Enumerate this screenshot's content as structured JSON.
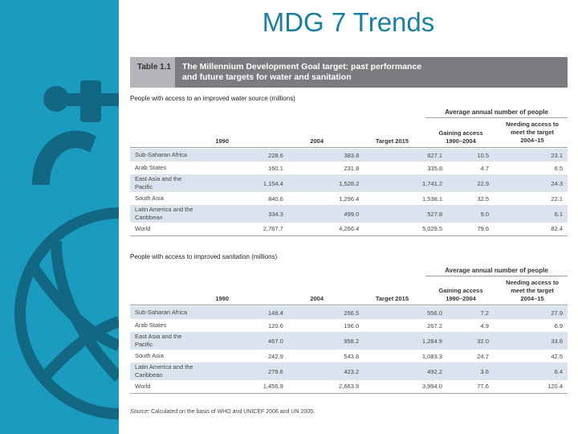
{
  "slide": {
    "title": "MDG 7 Trends"
  },
  "table": {
    "label": "Table 1.1",
    "caption_line1": "The Millennium Development Goal target: past performance",
    "caption_line2": "and future targets for water and sanitation"
  },
  "water": {
    "title": "People with access to an improved water source (millions)",
    "group_header": "Average annual number of people",
    "sub1": [
      "Gaining access",
      "1990–2004"
    ],
    "sub2": [
      "Needing access to",
      "meet the target",
      "2004–15"
    ],
    "columns": [
      "1990",
      "2004",
      "Target 2015"
    ],
    "rows": [
      {
        "region": [
          "Sub-Saharan Africa"
        ],
        "v": [
          "228.6",
          "383.8",
          "627.1",
          "10.5",
          "23.1"
        ]
      },
      {
        "region": [
          "Arab States"
        ],
        "v": [
          "160.1",
          "231.8",
          "335.8",
          "4.7",
          "6.5"
        ]
      },
      {
        "region": [
          "East Asia and the",
          "Pacific"
        ],
        "v": [
          "1,154.4",
          "1,528.2",
          "1,741.2",
          "22.9",
          "24.3"
        ]
      },
      {
        "region": [
          "South Asia"
        ],
        "v": [
          "840.6",
          "1,296.4",
          "1,538.1",
          "32.5",
          "22.1"
        ]
      },
      {
        "region": [
          "Latin America and the",
          "Caribbean"
        ],
        "v": [
          "334.3",
          "499.0",
          "527.8",
          "9.0",
          "6.1"
        ]
      },
      {
        "region": [
          "World"
        ],
        "v": [
          "2,767.7",
          "4,266.4",
          "5,029.5",
          "79.6",
          "82.4"
        ]
      }
    ]
  },
  "sanitation": {
    "title": "People with access to improved sanitation (millions)",
    "group_header": "Average annual number of people",
    "sub1": [
      "Gaining access",
      "1990–2004"
    ],
    "sub2": [
      "Needing access to",
      "meet the target",
      "2004–15"
    ],
    "columns": [
      "1990",
      "2004",
      "Target 2015"
    ],
    "rows": [
      {
        "region": [
          "Sub-Saharan Africa"
        ],
        "v": [
          "148.4",
          "256.5",
          "556.0",
          "7.2",
          "27.9"
        ]
      },
      {
        "region": [
          "Arab States"
        ],
        "v": [
          "120.6",
          "196.0",
          "267.2",
          "4.9",
          "6.9"
        ]
      },
      {
        "region": [
          "East Asia and the",
          "Pacific"
        ],
        "v": [
          "467.0",
          "958.2",
          "1,284.9",
          "32.0",
          "33.6"
        ]
      },
      {
        "region": [
          "South Asia"
        ],
        "v": [
          "242.9",
          "543.8",
          "1,083.3",
          "24.7",
          "42.5"
        ]
      },
      {
        "region": [
          "Latin America and the",
          "Caribbean"
        ],
        "v": [
          "279.6",
          "423.2",
          "492.2",
          "3.6",
          "6.4"
        ]
      },
      {
        "region": [
          "World"
        ],
        "v": [
          "1,456.9",
          "2,663.9",
          "3,994.0",
          "77.6",
          "120.4"
        ]
      }
    ]
  },
  "source": {
    "label": "Source:",
    "text": "Calculated on the basis of WHO and UNICEF 2006 and UN 2005."
  }
}
